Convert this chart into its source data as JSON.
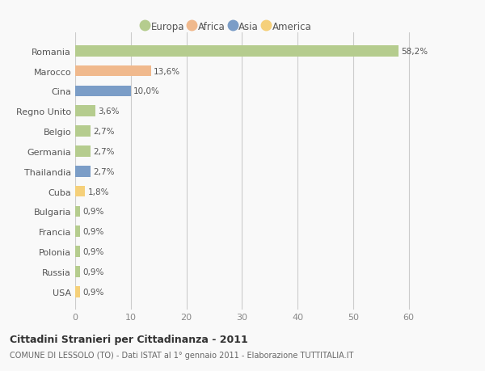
{
  "categories": [
    "Romania",
    "Marocco",
    "Cina",
    "Regno Unito",
    "Belgio",
    "Germania",
    "Thailandia",
    "Cuba",
    "Bulgaria",
    "Francia",
    "Polonia",
    "Russia",
    "USA"
  ],
  "values": [
    58.2,
    13.6,
    10.0,
    3.6,
    2.7,
    2.7,
    2.7,
    1.8,
    0.9,
    0.9,
    0.9,
    0.9,
    0.9
  ],
  "labels": [
    "58,2%",
    "13,6%",
    "10,0%",
    "3,6%",
    "2,7%",
    "2,7%",
    "2,7%",
    "1,8%",
    "0,9%",
    "0,9%",
    "0,9%",
    "0,9%",
    "0,9%"
  ],
  "colors": [
    "#b5cc8e",
    "#f0b98d",
    "#7b9dc7",
    "#b5cc8e",
    "#b5cc8e",
    "#b5cc8e",
    "#7b9dc7",
    "#f5d07a",
    "#b5cc8e",
    "#b5cc8e",
    "#b5cc8e",
    "#b5cc8e",
    "#f5d07a"
  ],
  "continent_colors": {
    "Europa": "#b5cc8e",
    "Africa": "#f0b98d",
    "Asia": "#7b9dc7",
    "America": "#f5d07a"
  },
  "xlim": [
    0,
    65
  ],
  "xticks": [
    0,
    10,
    20,
    30,
    40,
    50,
    60
  ],
  "title": "Cittadini Stranieri per Cittadinanza - 2011",
  "subtitle": "COMUNE DI LESSOLO (TO) - Dati ISTAT al 1° gennaio 2011 - Elaborazione TUTTITALIA.IT",
  "bg_color": "#f9f9f9",
  "bar_height": 0.55,
  "grid_color": "#cccccc"
}
